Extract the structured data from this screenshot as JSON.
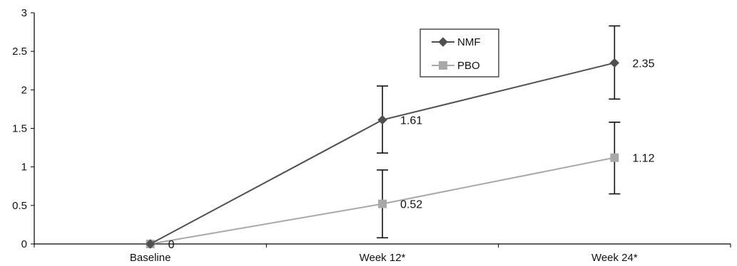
{
  "chart_data": {
    "type": "line",
    "categories": [
      "Baseline",
      "Week 12*",
      "Week 24*"
    ],
    "series": [
      {
        "name": "NMF",
        "values": [
          0,
          1.61,
          2.35
        ],
        "error_low": [
          0,
          1.18,
          1.88
        ],
        "error_high": [
          0,
          2.05,
          2.83
        ],
        "color": "#505050",
        "marker": "diamond",
        "data_labels": [
          "",
          "1.61",
          "2.35"
        ]
      },
      {
        "name": "PBO",
        "values": [
          0,
          0.52,
          1.12
        ],
        "error_low": [
          0,
          0.08,
          0.65
        ],
        "error_high": [
          0,
          0.96,
          1.58
        ],
        "color": "#a8a8a8",
        "marker": "square",
        "data_labels": [
          "0",
          "0.52",
          "1.12"
        ]
      }
    ],
    "ylim": [
      0,
      3
    ],
    "y_ticks": [
      "0",
      "0.5",
      "1",
      "1.5",
      "2",
      "2.5",
      "3"
    ],
    "legend_position": "top-center",
    "grid": false
  }
}
